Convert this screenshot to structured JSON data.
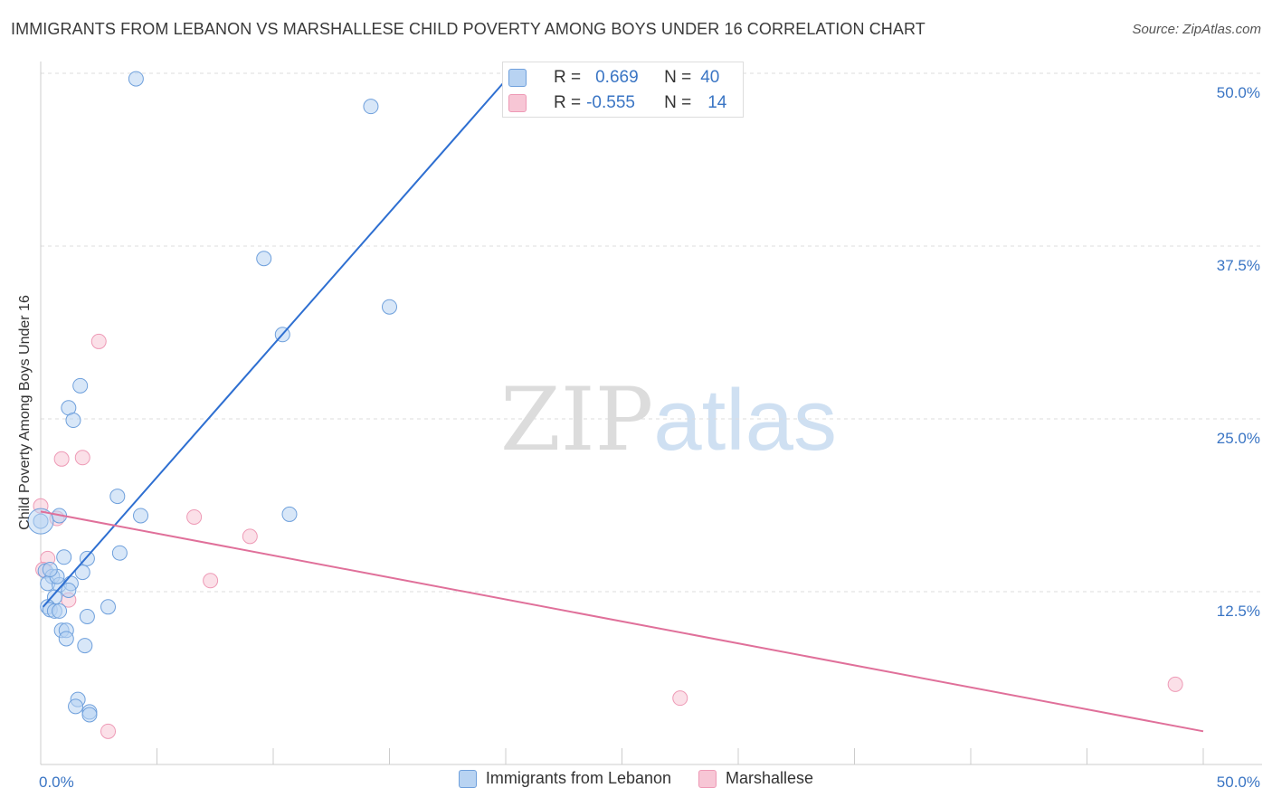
{
  "title": "IMMIGRANTS FROM LEBANON VS MARSHALLESE CHILD POVERTY AMONG BOYS UNDER 16 CORRELATION CHART",
  "source": "Source: ZipAtlas.com",
  "watermark": {
    "zip": "ZIP",
    "atlas": "atlas"
  },
  "chart_data": {
    "type": "scatter",
    "title": "IMMIGRANTS FROM LEBANON VS MARSHALLESE CHILD POVERTY AMONG BOYS UNDER 16 CORRELATION CHART",
    "xlabel": "",
    "ylabel": "Child Poverty Among Boys Under 16",
    "xlim": [
      0,
      50
    ],
    "ylim": [
      0,
      50
    ],
    "x_tick_labels": [
      "0.0%",
      "50.0%"
    ],
    "y_ticks": [
      {
        "value": 50,
        "label": "50.0%"
      },
      {
        "value": 37.5,
        "label": "37.5%"
      },
      {
        "value": 25,
        "label": "25.0%"
      },
      {
        "value": 12.5,
        "label": "12.5%"
      }
    ],
    "grid": true,
    "legend_position": "bottom",
    "series": [
      {
        "name": "Immigrants from Lebanon",
        "color": "#6fa0dc",
        "fill": "#b8d3f2",
        "line_color": "#2e6fd1",
        "r": "0.669",
        "n": "40",
        "trend": {
          "x0": 0.1,
          "y0": 11.4,
          "x1": 20,
          "y1": 49.5
        },
        "points": [
          [
            4.1,
            49.6
          ],
          [
            14.2,
            47.6
          ],
          [
            9.6,
            36.6
          ],
          [
            15.0,
            33.1
          ],
          [
            10.4,
            31.1
          ],
          [
            1.7,
            27.4
          ],
          [
            1.2,
            25.8
          ],
          [
            1.4,
            24.9
          ],
          [
            3.3,
            19.4
          ],
          [
            4.3,
            18.0
          ],
          [
            10.7,
            18.1
          ],
          [
            0.8,
            18.0
          ],
          [
            0.0,
            17.6
          ],
          [
            3.4,
            15.3
          ],
          [
            1.0,
            15.0
          ],
          [
            2.0,
            14.9
          ],
          [
            0.2,
            14.0
          ],
          [
            1.8,
            13.9
          ],
          [
            0.5,
            13.6
          ],
          [
            0.3,
            13.1
          ],
          [
            0.8,
            13.0
          ],
          [
            1.3,
            13.1
          ],
          [
            1.2,
            12.6
          ],
          [
            0.6,
            12.1
          ],
          [
            0.3,
            11.4
          ],
          [
            0.4,
            11.2
          ],
          [
            0.6,
            11.1
          ],
          [
            0.8,
            11.1
          ],
          [
            2.9,
            11.4
          ],
          [
            2.0,
            10.7
          ],
          [
            0.9,
            9.7
          ],
          [
            1.1,
            9.7
          ],
          [
            1.1,
            9.1
          ],
          [
            1.9,
            8.6
          ],
          [
            1.6,
            4.7
          ],
          [
            1.5,
            4.2
          ],
          [
            2.1,
            3.8
          ],
          [
            2.1,
            3.6
          ],
          [
            0.7,
            13.6
          ],
          [
            0.4,
            14.1
          ]
        ]
      },
      {
        "name": "Marshallese",
        "color": "#ee9ab6",
        "fill": "#f7c6d5",
        "line_color": "#e0709a",
        "r": "-0.555",
        "n": "14",
        "trend": {
          "x0": 0,
          "y0": 18.3,
          "x1": 50,
          "y1": 2.4
        },
        "points": [
          [
            2.5,
            30.6
          ],
          [
            0.9,
            22.1
          ],
          [
            1.8,
            22.2
          ],
          [
            0.0,
            18.7
          ],
          [
            0.7,
            17.8
          ],
          [
            6.6,
            17.9
          ],
          [
            9.0,
            16.5
          ],
          [
            0.3,
            14.9
          ],
          [
            0.1,
            14.1
          ],
          [
            7.3,
            13.3
          ],
          [
            1.2,
            11.9
          ],
          [
            2.9,
            2.4
          ],
          [
            27.5,
            4.8
          ],
          [
            48.8,
            5.8
          ]
        ]
      }
    ]
  }
}
